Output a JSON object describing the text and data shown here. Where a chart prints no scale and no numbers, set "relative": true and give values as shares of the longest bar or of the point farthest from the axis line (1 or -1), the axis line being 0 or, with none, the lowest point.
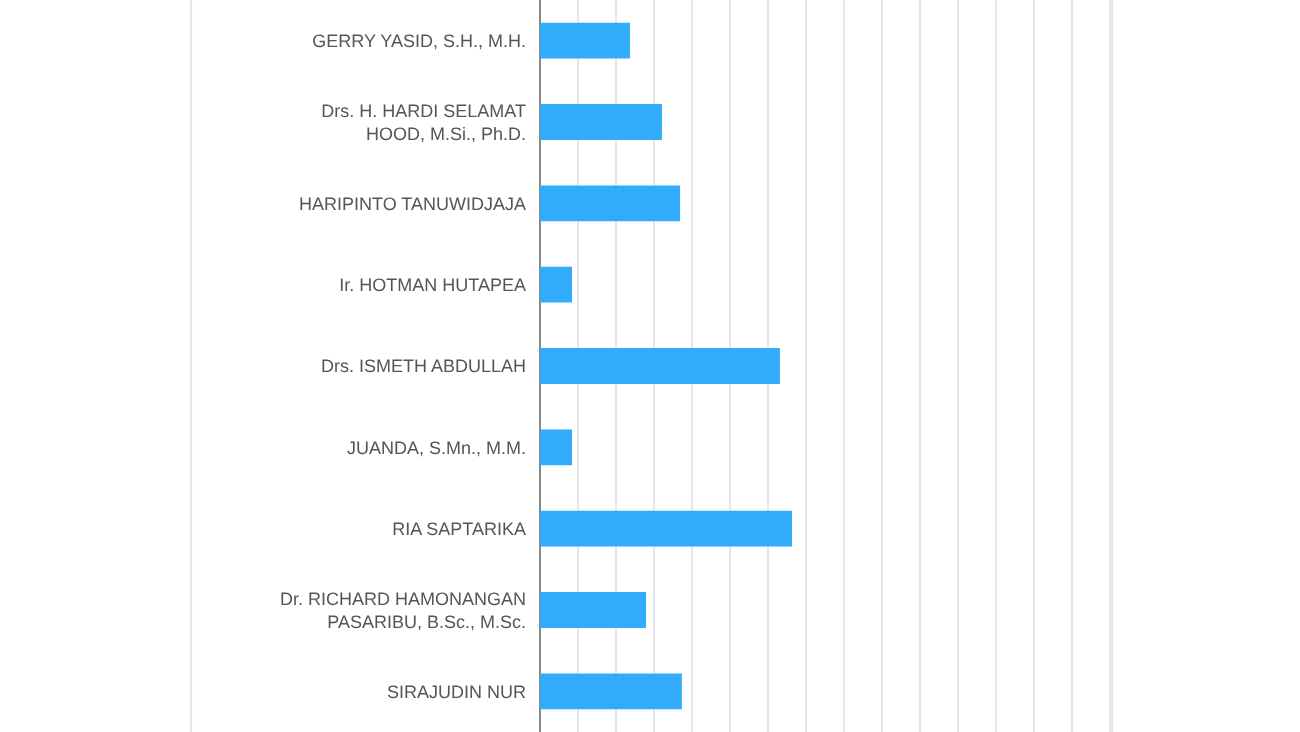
{
  "chart_data": {
    "type": "bar",
    "orientation": "horizontal",
    "relative": true,
    "grid": "x",
    "categories": [
      "GERRY YASID, S.H., M.H.",
      "Drs. H. HARDI SELAMAT HOOD, M.Si., Ph.D.",
      "HARIPINTO TANUWIDJAJA",
      "Ir. HOTMAN HUTAPEA",
      "Drs. ISMETH ABDULLAH",
      "JUANDA, S.Mn., M.M.",
      "RIA SAPTARIKA",
      "Dr. RICHARD HAMONANGAN PASARIBU, B.Sc., M.Sc.",
      "SIRAJUDIN NUR"
    ],
    "values": [
      0.357,
      0.484,
      0.556,
      0.127,
      0.952,
      0.127,
      1,
      0.421,
      0.563
    ],
    "color": "#30acfa"
  }
}
